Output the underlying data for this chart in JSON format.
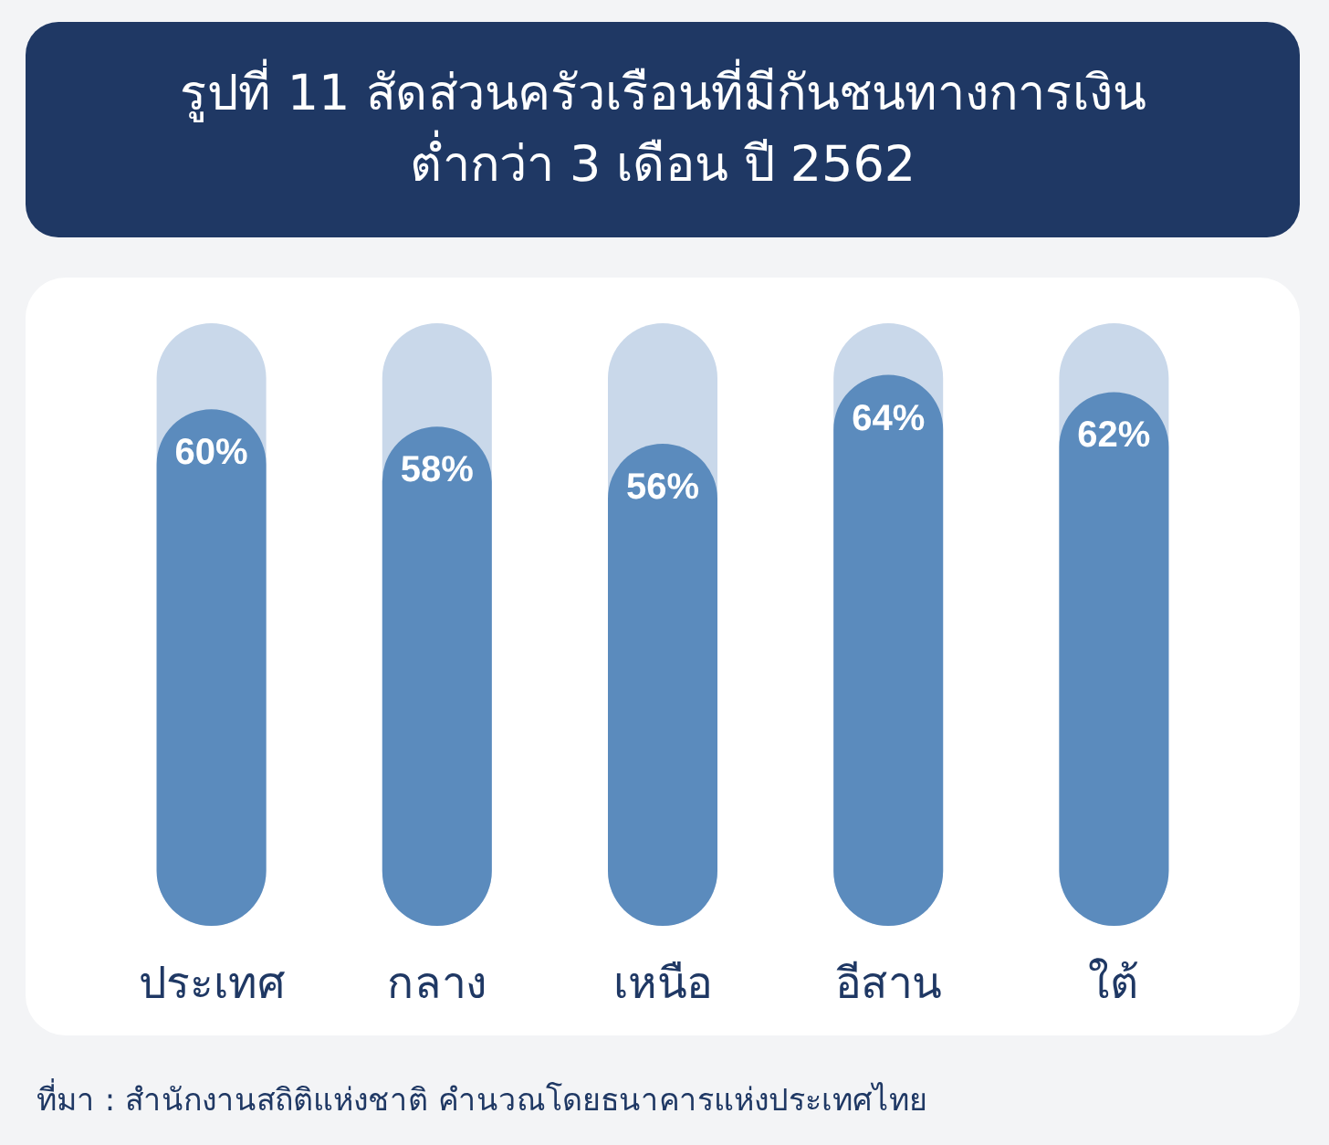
{
  "chart_data": {
    "type": "bar",
    "title": "รูปที่ 11 สัดส่วนครัวเรือนที่มีกันชนทางการเงิน\nต่ำกว่า 3 เดือน ปี 2562",
    "categories": [
      "ประเทศ",
      "กลาง",
      "เหนือ",
      "อีสาน",
      "ใต้"
    ],
    "values": [
      60,
      58,
      56,
      64,
      62
    ],
    "value_labels": [
      "60%",
      "58%",
      "56%",
      "64%",
      "62%"
    ],
    "color": "#5b8bbd",
    "annotations": [
      "ที่มา : สำนักงานสถิติแห่งชาติ คำนวณโดยธนาคารแห่งประเทศไทย"
    ]
  }
}
